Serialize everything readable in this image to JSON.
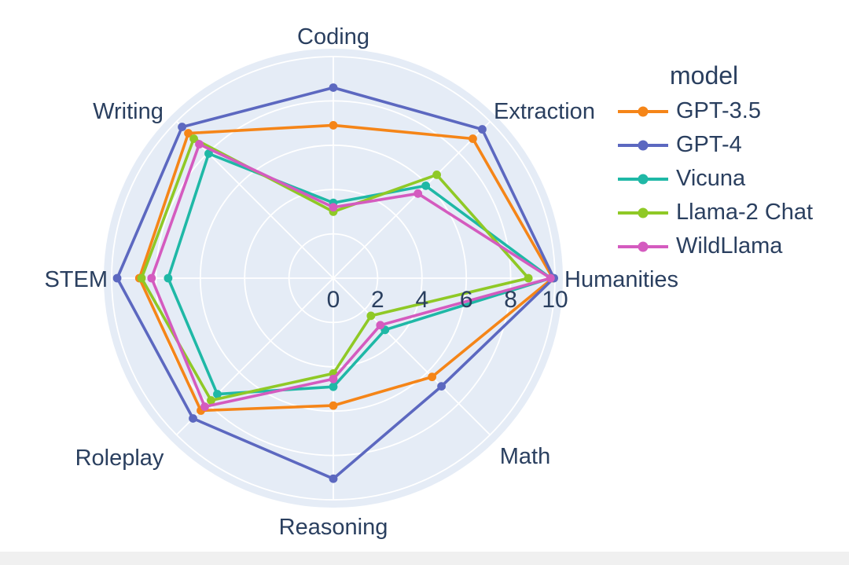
{
  "page": {
    "background_color": "#ffffff",
    "bottom_bar_color": "#f0f0f0"
  },
  "chart_data": {
    "type": "radar",
    "categories": [
      "Coding",
      "Extraction",
      "Humanities",
      "Math",
      "Reasoning",
      "Roleplay",
      "STEM",
      "Writing"
    ],
    "radial_ticks": [
      0,
      2,
      4,
      6,
      8,
      10
    ],
    "radial_range": [
      0,
      10
    ],
    "grid": true,
    "background_color": "#e5ecf6",
    "gridline_color": "#ffffff",
    "label_color": "#2a3f5f",
    "legend": {
      "title": "model",
      "position": "right"
    },
    "series": [
      {
        "name": "GPT-3.5",
        "color": "#f58518",
        "values": [
          6.9,
          8.9,
          9.9,
          6.3,
          5.75,
          8.45,
          8.75,
          9.25
        ]
      },
      {
        "name": "GPT-4",
        "color": "#5c68c0",
        "values": [
          8.6,
          9.5,
          9.95,
          6.9,
          9.05,
          8.95,
          9.75,
          9.65
        ]
      },
      {
        "name": "Vicuna",
        "color": "#1fb8a6",
        "values": [
          3.4,
          5.9,
          9.8,
          3.3,
          4.9,
          7.4,
          7.45,
          7.95
        ]
      },
      {
        "name": "Llama-2 Chat",
        "color": "#8fc926",
        "values": [
          3.0,
          6.6,
          8.8,
          2.4,
          4.3,
          7.8,
          8.65,
          8.9
        ]
      },
      {
        "name": "WildLlama",
        "color": "#d45bbf",
        "values": [
          3.2,
          5.4,
          9.8,
          3.0,
          4.55,
          8.2,
          8.2,
          8.55
        ]
      }
    ]
  }
}
